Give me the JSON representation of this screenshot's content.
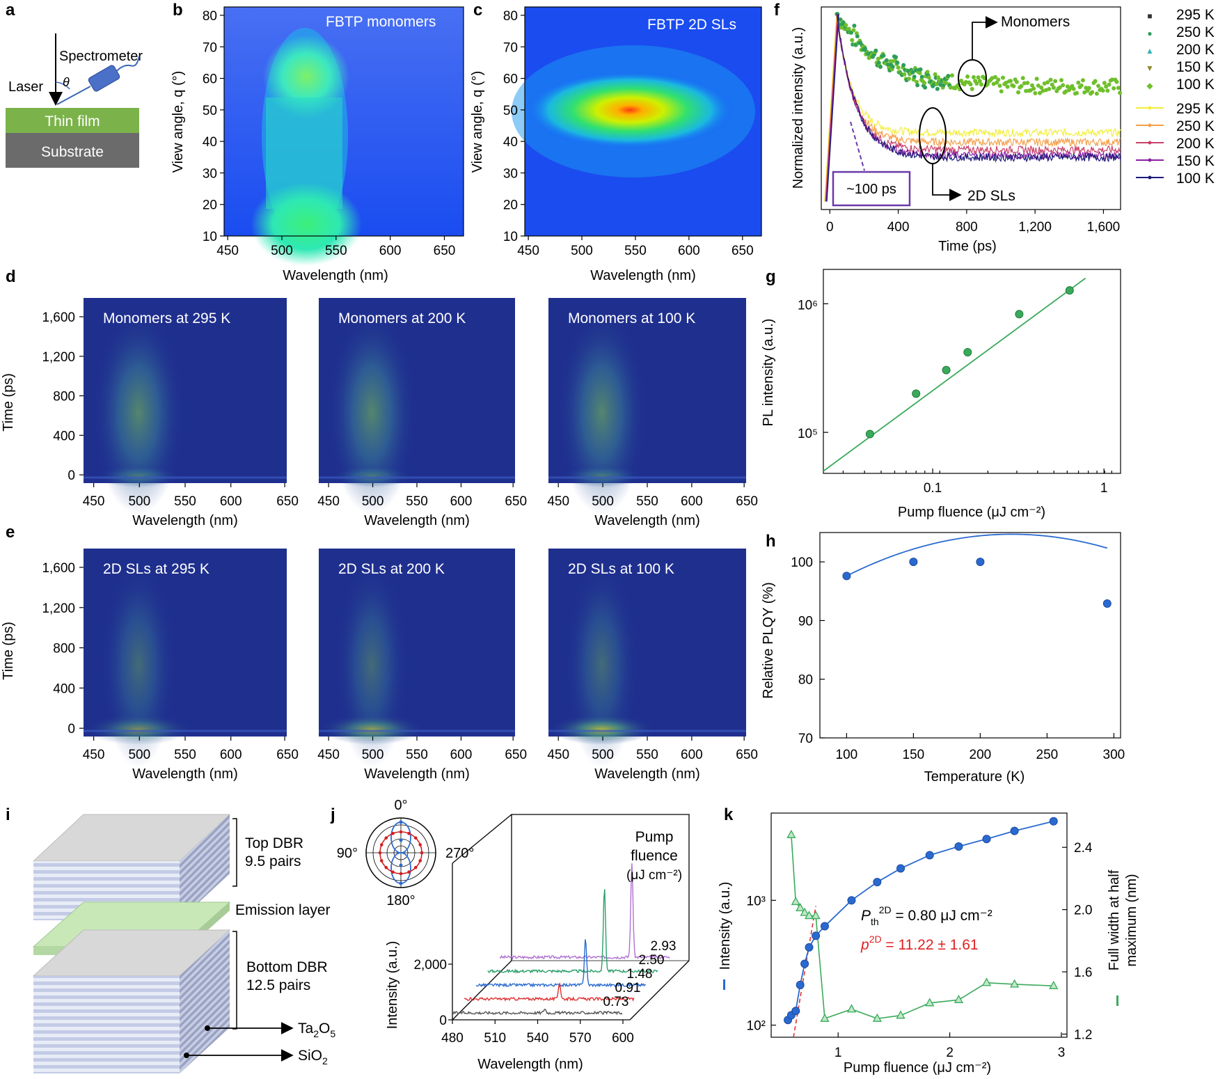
{
  "panels": {
    "a": "a",
    "b": "b",
    "c": "c",
    "d": "d",
    "e": "e",
    "f": "f",
    "g": "g",
    "h": "h",
    "i": "i",
    "j": "j",
    "k": "k"
  },
  "panel_a": {
    "spectrometer": "Spectrometer",
    "laser": "Laser",
    "theta": "θ",
    "thin_film": "Thin film",
    "substrate": "Substrate"
  },
  "panel_b": {
    "title": "FBTP monomers",
    "xlabel": "Wavelength (nm)",
    "ylabel": "View angle, q (°)",
    "xticks": [
      "450",
      "500",
      "550",
      "600",
      "650"
    ],
    "yticks": [
      "80",
      "70",
      "60",
      "50",
      "40",
      "30",
      "20",
      "10"
    ]
  },
  "panel_c": {
    "title": "FBTP 2D SLs",
    "xlabel": "Wavelength (nm)",
    "ylabel": "View angle, q (°)",
    "xticks": [
      "450",
      "500",
      "550",
      "600",
      "650"
    ],
    "yticks": [
      "80",
      "70",
      "60",
      "50",
      "40",
      "30",
      "20",
      "10"
    ]
  },
  "panel_d": {
    "titles": [
      "Monomers at 295 K",
      "Monomers at 200 K",
      "Monomers at 100 K"
    ],
    "xlabel": "Wavelength (nm)",
    "ylabel": "Time (ps)",
    "xticks": [
      "450",
      "500",
      "550",
      "600",
      "650"
    ],
    "yticks": [
      "1,600",
      "1,200",
      "800",
      "400",
      "0"
    ]
  },
  "panel_e": {
    "titles": [
      "2D SLs at 295 K",
      "2D SLs at 200 K",
      "2D SLs at 100 K"
    ],
    "xlabel": "Wavelength (nm)",
    "ylabel": "Time (ps)",
    "xticks": [
      "450",
      "500",
      "550",
      "600",
      "650"
    ],
    "yticks": [
      "1,600",
      "1,200",
      "800",
      "400",
      "0"
    ]
  },
  "panel_i": {
    "top_dbr": "Top DBR",
    "top_pairs": "9.5 pairs",
    "emission": "Emission layer",
    "bottom_dbr": "Bottom DBR",
    "bottom_pairs": "12.5 pairs",
    "ta2o5": "Ta2O5",
    "ta_sub": "2",
    "ta_post": "O",
    "ta_sub2": "5",
    "sio2": "SiO2",
    "si_pre": "SiO",
    "si_sub": "2"
  },
  "panel_j": {
    "polar": [
      "0°",
      "90°",
      "270°",
      "180°"
    ],
    "pump": "Pump",
    "fluence": "fluence",
    "unit": "(μJ cm⁻²)",
    "fluences": [
      "2.93",
      "2.50",
      "1.48",
      "0.91",
      "0.73"
    ],
    "xlabel": "Wavelength (nm)",
    "ylabel": "Intensity (a.u.)",
    "xticks": [
      "480",
      "510",
      "540",
      "570",
      "600"
    ],
    "yticks": [
      "2,000",
      "0"
    ]
  },
  "panel_k": {
    "pth": "P",
    "pth_sub": "th",
    "pth_sup": "2D",
    "pth_val": " = 0.80 μJ cm⁻²",
    "p": "p",
    "p_sup": "2D",
    "p_val": " = 11.22 ± 1.61",
    "xlabel": "Pump fluence (μJ cm⁻²)",
    "ylabel_left": "Intensity (a.u.)",
    "ylabel_right": "Full width at half maximum (nm)",
    "ylabel_right1": "Full width at half",
    "ylabel_right2": "maximum (nm)",
    "xticks": [
      "1",
      "2",
      "3"
    ],
    "yticks_left": [
      "10³",
      "10²"
    ],
    "yticks_right": [
      "2.4",
      "2.0",
      "1.6",
      "1.2"
    ]
  },
  "chart_data": [
    {
      "id": "f",
      "type": "scatter+line",
      "xlabel": "Time (ps)",
      "ylabel": "Normalized intensity (a.u.)",
      "xticks": [
        "0",
        "400",
        "800",
        "1,200",
        "1,600"
      ],
      "xlim": [
        -50,
        1700
      ],
      "annotations": {
        "monomers": "Monomers",
        "sls": "2D SLs",
        "tau": "~100 ps"
      },
      "series": [
        {
          "name": "295 K",
          "group": "Monomers",
          "color": "#333333",
          "marker": "■"
        },
        {
          "name": "250 K",
          "group": "Monomers",
          "color": "#2e9e5a",
          "marker": "●"
        },
        {
          "name": "200 K",
          "group": "Monomers",
          "color": "#2fb5b5",
          "marker": "▲"
        },
        {
          "name": "150 K",
          "group": "Monomers",
          "color": "#8a8a2a",
          "marker": "▼"
        },
        {
          "name": "100 K",
          "group": "Monomers",
          "color": "#6fbf2c",
          "marker": "◆",
          "plateau": 0.62
        },
        {
          "name": "295 K",
          "group": "2D SLs",
          "color": "#f2ee3a",
          "plateau": 0.38
        },
        {
          "name": "250 K",
          "group": "2D SLs",
          "color": "#f5a04a",
          "plateau": 0.33
        },
        {
          "name": "200 K",
          "group": "2D SLs",
          "color": "#c9406a",
          "plateau": 0.29
        },
        {
          "name": "150 K",
          "group": "2D SLs",
          "color": "#8a1fa0",
          "plateau": 0.26
        },
        {
          "name": "100 K",
          "group": "2D SLs",
          "color": "#1b1a7a",
          "plateau": 0.25
        }
      ]
    },
    {
      "id": "g",
      "type": "scatter",
      "scale": "log-log",
      "xlabel": "Pump fluence (μJ cm⁻²)",
      "ylabel": "PL intensity (a.u.)",
      "xticks": [
        "0.1",
        "1"
      ],
      "yticks": [
        "10⁶",
        "10⁵"
      ],
      "x": [
        0.043,
        0.08,
        0.12,
        0.16,
        0.32,
        0.63
      ],
      "y": [
        97000,
        200000,
        305000,
        420000,
        830000,
        1270000
      ],
      "fit": {
        "x": [
          0.023,
          0.78
        ],
        "y": [
          50000,
          1580000
        ]
      }
    },
    {
      "id": "h",
      "type": "line",
      "xlabel": "Temperature (K)",
      "ylabel": "Relative PLQY (%)",
      "xticks": [
        "100",
        "150",
        "200",
        "250",
        "300"
      ],
      "yticks": [
        "100",
        "90",
        "80",
        "70"
      ],
      "ylim": [
        70,
        105
      ],
      "xlim": [
        80,
        305
      ],
      "x": [
        100,
        150,
        200,
        295
      ],
      "y": [
        97.6,
        100,
        100,
        92.9
      ]
    },
    {
      "id": "k",
      "type": "line",
      "xlabel": "Pump fluence (μJ cm⁻²)",
      "x_ticks": [
        "1",
        "2",
        "3"
      ],
      "intensity": {
        "x": [
          0.55,
          0.58,
          0.62,
          0.66,
          0.7,
          0.74,
          0.8,
          0.88,
          1.12,
          1.35,
          1.56,
          1.82,
          2.08,
          2.33,
          2.58,
          2.93
        ],
        "y": [
          110,
          120,
          130,
          210,
          310,
          420,
          520,
          620,
          1000,
          1400,
          1800,
          2300,
          2700,
          3100,
          3600,
          4300
        ]
      },
      "fwhm": {
        "x": [
          0.58,
          0.62,
          0.66,
          0.7,
          0.74,
          0.8,
          0.88,
          1.12,
          1.35,
          1.56,
          1.82,
          2.08,
          2.33,
          2.58,
          2.93
        ],
        "y": [
          2.48,
          2.05,
          2.01,
          1.98,
          1.96,
          1.96,
          1.3,
          1.36,
          1.3,
          1.32,
          1.4,
          1.42,
          1.53,
          1.52,
          1.51
        ]
      }
    }
  ]
}
